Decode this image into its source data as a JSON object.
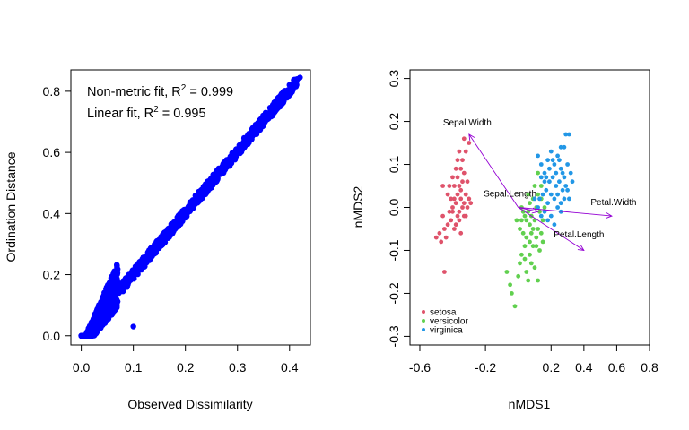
{
  "chart_data": [
    {
      "type": "scatter",
      "xlabel": "Observed Dissimilarity",
      "ylabel": "Ordination Distance",
      "xlim": [
        -0.02,
        0.44
      ],
      "ylim": [
        -0.03,
        0.87
      ],
      "xticks": [
        "0.0",
        "0.1",
        "0.2",
        "0.3",
        "0.4"
      ],
      "yticks": [
        "0.0",
        "0.2",
        "0.4",
        "0.6",
        "0.8"
      ],
      "point_color": "#0000ff",
      "annotations": [
        {
          "prefix": "Non-metric fit, R",
          "sup": "2",
          "suffix": " = 0.999"
        },
        {
          "prefix": "Linear fit, R",
          "sup": "2",
          "suffix": " = 0.995"
        }
      ],
      "trend": {
        "x_start": 0.0,
        "x_end": 0.42,
        "y_start": 0.0,
        "y_end": 0.845
      }
    },
    {
      "type": "scatter",
      "xlabel": "nMDS1",
      "ylabel": "nMDS2",
      "xlim": [
        -0.66,
        0.8
      ],
      "ylim": [
        -0.32,
        0.32
      ],
      "xticks": [
        "-0.6",
        "-0.2",
        "0.2",
        "0.4",
        "0.6",
        "0.8"
      ],
      "yticks": [
        "-0.3",
        "-0.2",
        "-0.1",
        "0.0",
        "0.1",
        "0.2",
        "0.3"
      ],
      "series": [
        {
          "name": "setosa",
          "color": "#DF536B",
          "points": [
            [
              -0.45,
              -0.15
            ],
            [
              -0.5,
              -0.07
            ],
            [
              -0.47,
              -0.08
            ],
            [
              -0.48,
              -0.06
            ],
            [
              -0.45,
              -0.05
            ],
            [
              -0.44,
              -0.07
            ],
            [
              -0.43,
              -0.04
            ],
            [
              -0.41,
              -0.03
            ],
            [
              -0.39,
              -0.05
            ],
            [
              -0.37,
              -0.02
            ],
            [
              -0.46,
              -0.02
            ],
            [
              -0.42,
              -0.01
            ],
            [
              -0.4,
              0.0
            ],
            [
              -0.38,
              0.01
            ],
            [
              -0.36,
              -0.01
            ],
            [
              -0.34,
              0.0
            ],
            [
              -0.33,
              0.01
            ],
            [
              -0.35,
              0.02
            ],
            [
              -0.39,
              0.02
            ],
            [
              -0.41,
              0.02
            ],
            [
              -0.43,
              0.03
            ],
            [
              -0.37,
              0.03
            ],
            [
              -0.35,
              0.04
            ],
            [
              -0.32,
              0.03
            ],
            [
              -0.3,
              0.02
            ],
            [
              -0.33,
              -0.02
            ],
            [
              -0.36,
              -0.03
            ],
            [
              -0.38,
              -0.04
            ],
            [
              -0.31,
              0.06
            ],
            [
              -0.34,
              0.06
            ],
            [
              -0.36,
              0.05
            ],
            [
              -0.39,
              0.05
            ],
            [
              -0.37,
              0.07
            ],
            [
              -0.33,
              0.08
            ],
            [
              -0.35,
              0.09
            ],
            [
              -0.38,
              0.09
            ],
            [
              -0.34,
              0.11
            ],
            [
              -0.37,
              0.11
            ],
            [
              -0.32,
              0.13
            ],
            [
              -0.33,
              0.16
            ],
            [
              -0.3,
              0.15
            ],
            [
              -0.36,
              0.13
            ],
            [
              -0.4,
              0.07
            ],
            [
              -0.42,
              0.05
            ],
            [
              -0.46,
              0.05
            ],
            [
              -0.31,
              0.0
            ],
            [
              -0.29,
              0.01
            ],
            [
              -0.4,
              -0.01
            ],
            [
              -0.35,
              -0.06
            ],
            [
              -0.32,
              -0.02
            ]
          ]
        },
        {
          "name": "versicolor",
          "color": "#61D04F",
          "points": [
            [
              -0.07,
              -0.15
            ],
            [
              -0.05,
              -0.18
            ],
            [
              -0.04,
              -0.2
            ],
            [
              -0.02,
              -0.23
            ],
            [
              0.0,
              -0.16
            ],
            [
              0.01,
              -0.13
            ],
            [
              0.02,
              -0.11
            ],
            [
              0.04,
              -0.12
            ],
            [
              0.05,
              -0.15
            ],
            [
              0.06,
              -0.17
            ],
            [
              0.07,
              -0.11
            ],
            [
              0.08,
              -0.13
            ],
            [
              0.1,
              -0.14
            ],
            [
              0.12,
              -0.17
            ],
            [
              0.11,
              -0.09
            ],
            [
              0.09,
              -0.09
            ],
            [
              0.07,
              -0.08
            ],
            [
              0.05,
              -0.07
            ],
            [
              0.03,
              -0.06
            ],
            [
              0.01,
              -0.05
            ],
            [
              -0.01,
              -0.03
            ],
            [
              0.02,
              -0.03
            ],
            [
              0.04,
              -0.02
            ],
            [
              0.06,
              -0.01
            ],
            [
              0.08,
              -0.02
            ],
            [
              0.1,
              -0.03
            ],
            [
              0.12,
              -0.05
            ],
            [
              0.14,
              -0.06
            ],
            [
              0.15,
              -0.08
            ],
            [
              0.13,
              -0.1
            ],
            [
              0.11,
              -0.07
            ],
            [
              0.09,
              -0.05
            ],
            [
              0.07,
              -0.04
            ],
            [
              0.05,
              -0.03
            ],
            [
              0.03,
              -0.01
            ],
            [
              0.07,
              0.01
            ],
            [
              0.09,
              0.02
            ],
            [
              0.11,
              0.0
            ],
            [
              0.13,
              -0.01
            ],
            [
              0.15,
              -0.03
            ],
            [
              0.16,
              0.0
            ],
            [
              0.14,
              0.02
            ],
            [
              0.12,
              0.03
            ],
            [
              0.1,
              0.05
            ],
            [
              0.12,
              0.08
            ],
            [
              0.14,
              0.05
            ],
            [
              0.02,
              0.0
            ],
            [
              0.06,
              0.03
            ],
            [
              0.08,
              -0.06
            ],
            [
              0.04,
              -0.09
            ]
          ]
        },
        {
          "name": "virginica",
          "color": "#2297E6",
          "points": [
            [
              0.12,
              0.12
            ],
            [
              0.14,
              0.1
            ],
            [
              0.16,
              0.08
            ],
            [
              0.18,
              0.11
            ],
            [
              0.2,
              0.13
            ],
            [
              0.22,
              0.1
            ],
            [
              0.24,
              0.12
            ],
            [
              0.26,
              0.09
            ],
            [
              0.28,
              0.07
            ],
            [
              0.3,
              0.1
            ],
            [
              0.29,
              0.05
            ],
            [
              0.27,
              0.04
            ],
            [
              0.25,
              0.06
            ],
            [
              0.23,
              0.05
            ],
            [
              0.21,
              0.07
            ],
            [
              0.19,
              0.06
            ],
            [
              0.17,
              0.04
            ],
            [
              0.15,
              0.03
            ],
            [
              0.13,
              0.02
            ],
            [
              0.18,
              0.01
            ],
            [
              0.2,
              0.03
            ],
            [
              0.22,
              0.02
            ],
            [
              0.24,
              0.03
            ],
            [
              0.26,
              0.01
            ],
            [
              0.28,
              0.02
            ],
            [
              0.16,
              -0.01
            ],
            [
              0.18,
              -0.03
            ],
            [
              0.2,
              -0.02
            ],
            [
              0.22,
              -0.04
            ],
            [
              0.14,
              -0.02
            ],
            [
              0.12,
              0.0
            ],
            [
              0.1,
              0.02
            ],
            [
              0.16,
              0.06
            ],
            [
              0.24,
              0.0
            ],
            [
              0.26,
              -0.01
            ],
            [
              0.3,
              0.04
            ],
            [
              0.32,
              0.08
            ],
            [
              0.31,
              0.02
            ],
            [
              0.27,
              0.08
            ],
            [
              0.23,
              0.08
            ],
            [
              0.19,
              0.09
            ],
            [
              0.21,
              0.11
            ],
            [
              0.25,
              0.11
            ],
            [
              0.29,
              0.17
            ],
            [
              0.31,
              0.17
            ],
            [
              0.28,
              0.14
            ],
            [
              0.26,
              0.14
            ],
            [
              0.17,
              0.07
            ],
            [
              0.14,
              0.07
            ],
            [
              0.33,
              0.06
            ]
          ]
        }
      ],
      "vectors": [
        {
          "label": "Sepal.Width",
          "x": -0.3,
          "y": 0.17
        },
        {
          "label": "Sepal.Length",
          "x": 0.12,
          "y": -0.01
        },
        {
          "label": "Petal.Width",
          "x": 0.57,
          "y": -0.02
        },
        {
          "label": "Petal.Length",
          "x": 0.4,
          "y": -0.1
        }
      ],
      "vector_color": "#9400D3",
      "legend": {
        "position": "bottom-left",
        "entries": [
          "setosa",
          "versicolor",
          "virginica"
        ]
      }
    }
  ]
}
